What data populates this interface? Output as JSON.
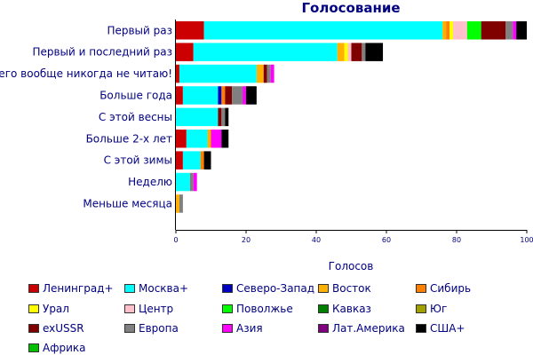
{
  "chart_data": {
    "type": "bar",
    "orientation": "horizontal",
    "stacked": true,
    "title": "Голосование",
    "xlabel": "Голосов",
    "ylabel": "",
    "xlim": [
      0,
      100
    ],
    "xticks": [
      0,
      20,
      40,
      60,
      80,
      100
    ],
    "grid": false,
    "legend_position": "bottom",
    "categories": [
      "Первый раз",
      "Первый и последний раз",
      "Я его вообще никогда не читаю!",
      "Больше года",
      "С этой весны",
      "Больше 2-х лет",
      "С этой зимы",
      "Неделю",
      "Меньше месяца"
    ],
    "series": [
      {
        "name": "Ленинград+",
        "color": "#cc0000",
        "values": [
          8,
          5,
          1,
          2,
          0,
          3,
          2,
          0,
          0
        ]
      },
      {
        "name": "Москва+",
        "color": "#00ffff",
        "values": [
          68,
          41,
          22,
          10,
          12,
          6,
          5,
          4,
          0
        ]
      },
      {
        "name": "Северо-Запад",
        "color": "#0000c0",
        "values": [
          0,
          0,
          0,
          1,
          0,
          0,
          0,
          0,
          0
        ]
      },
      {
        "name": "Восток",
        "color": "#ffb000",
        "values": [
          1,
          2,
          2,
          0,
          0,
          1,
          0,
          0,
          1
        ]
      },
      {
        "name": "Сибирь",
        "color": "#ff8000",
        "values": [
          1,
          0,
          0,
          1,
          0,
          0,
          1,
          0,
          0
        ]
      },
      {
        "name": "Урал",
        "color": "#ffff00",
        "values": [
          1,
          1,
          0,
          0,
          0,
          0,
          0,
          0,
          0
        ]
      },
      {
        "name": "Центр",
        "color": "#ffc0cb",
        "values": [
          4,
          1,
          0,
          0,
          0,
          0,
          0,
          0,
          0
        ]
      },
      {
        "name": "Поволжье",
        "color": "#00ff00",
        "values": [
          4,
          0,
          0,
          0,
          0,
          0,
          0,
          0,
          0
        ]
      },
      {
        "name": "Кавказ",
        "color": "#008000",
        "values": [
          0,
          0,
          0,
          0,
          0,
          0,
          0,
          0,
          0
        ]
      },
      {
        "name": "Юг",
        "color": "#a0a000",
        "values": [
          0,
          0,
          0,
          0,
          0,
          0,
          0,
          0,
          0
        ]
      },
      {
        "name": "exUSSR",
        "color": "#800000",
        "values": [
          7,
          3,
          1,
          2,
          1,
          0,
          0,
          0,
          0
        ]
      },
      {
        "name": "Европа",
        "color": "#808080",
        "values": [
          2,
          1,
          1,
          3,
          1,
          0,
          0,
          1,
          1
        ]
      },
      {
        "name": "Азия",
        "color": "#ff00ff",
        "values": [
          1,
          0,
          1,
          1,
          0,
          3,
          0,
          1,
          0
        ]
      },
      {
        "name": "Лат.Америка",
        "color": "#800080",
        "values": [
          0,
          0,
          0,
          0,
          0,
          0,
          0,
          0,
          0
        ]
      },
      {
        "name": "США+",
        "color": "#000000",
        "values": [
          3,
          5,
          0,
          3,
          1,
          2,
          2,
          0,
          0
        ]
      },
      {
        "name": "Африка",
        "color": "#00c000",
        "values": [
          0,
          0,
          0,
          0,
          0,
          0,
          0,
          0,
          0
        ]
      }
    ]
  }
}
